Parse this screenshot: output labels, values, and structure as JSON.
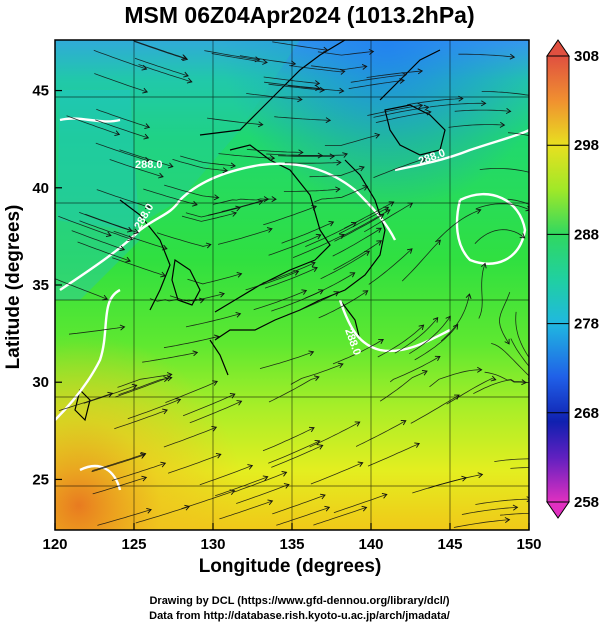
{
  "title": "MSM 06Z04Apr2024 (1013.2hPa)",
  "x_axis": {
    "label": "Longitude (degrees)",
    "ticks": [
      "120",
      "125",
      "130",
      "135",
      "140",
      "145",
      "150"
    ],
    "range": [
      120,
      150
    ]
  },
  "y_axis": {
    "label": "Latitude  (degrees)",
    "ticks": [
      "25",
      "30",
      "35",
      "40",
      "45"
    ],
    "range": [
      22.4,
      47.6
    ]
  },
  "colorbar": {
    "ticks": [
      "308",
      "298",
      "288",
      "278",
      "268",
      "258"
    ],
    "range": [
      258,
      308
    ]
  },
  "contour_labels": [
    "288.0",
    "288.0",
    "288.0",
    "288.0"
  ],
  "credits": {
    "line1": "Drawing by DCL (https://www.gfd-dennou.org/library/dcl/)",
    "line2": "Data from http://database.rish.kyoto-u.ac.jp/arch/jmadata/"
  }
}
